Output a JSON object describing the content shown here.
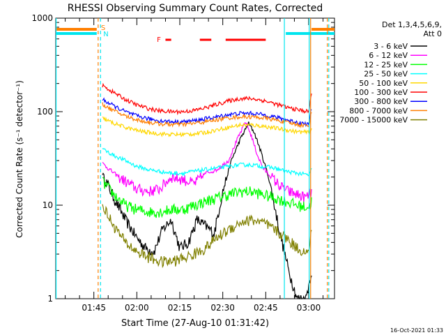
{
  "chart_data": {
    "type": "line",
    "title": "RHESSI Observing Summary Count Rates, Corrected",
    "xlabel": "Start Time (27-Aug-10 01:31:42)",
    "ylabel": "Corrected Count Rate (s⁻¹ detector⁻¹)",
    "y_scale": "log",
    "xlim": [
      "01:31:42",
      "03:09:00"
    ],
    "ylim": [
      1,
      1000
    ],
    "x_ticks": [
      "01:45",
      "02:00",
      "02:15",
      "02:30",
      "02:45",
      "03:00"
    ],
    "y_ticks": [
      "1",
      "10",
      "100",
      "1000"
    ],
    "timestamp": "16-Oct-2021 01:33",
    "legend": {
      "placement": "right",
      "header_line1": "Det 1,3,4,5,6,9,",
      "header_line2": "Att 0"
    },
    "markers": [
      {
        "label": "S",
        "color": "#ff7f00"
      },
      {
        "label": "N",
        "color": "#00e5ee"
      },
      {
        "label": "F",
        "color": "#ff0000"
      }
    ],
    "flare_flag_segments": [
      [
        "02:10",
        "02:12"
      ],
      [
        "02:22",
        "02:26"
      ],
      [
        "02:31",
        "02:45"
      ]
    ],
    "data_start": "01:48",
    "data_end": "03:01",
    "series": [
      {
        "name": "3 - 6 keV",
        "color": "#000000",
        "x": [
          "01:48",
          "01:52",
          "01:56",
          "02:00",
          "02:03",
          "02:06",
          "02:09",
          "02:12",
          "02:15",
          "02:18",
          "02:21",
          "02:24",
          "02:27",
          "02:30",
          "02:33",
          "02:36",
          "02:39",
          "02:41",
          "02:43",
          "02:46",
          "02:48",
          "02:50",
          "02:53",
          "02:56",
          "02:59",
          "03:01"
        ],
        "values": [
          22,
          12,
          7,
          4.5,
          3.5,
          3.2,
          5.5,
          7,
          3.5,
          4,
          7,
          6,
          5,
          14,
          30,
          50,
          75,
          60,
          40,
          20,
          10,
          5,
          2,
          1,
          1,
          2
        ]
      },
      {
        "name": "6 - 12 keV",
        "color": "#ff00ff",
        "x": [
          "01:48",
          "01:52",
          "01:56",
          "02:00",
          "02:04",
          "02:08",
          "02:12",
          "02:16",
          "02:20",
          "02:24",
          "02:28",
          "02:32",
          "02:35",
          "02:38",
          "02:40",
          "02:42",
          "02:44",
          "02:47",
          "02:50",
          "02:53",
          "02:56",
          "02:59",
          "03:01"
        ],
        "values": [
          28,
          22,
          18,
          15,
          14,
          15,
          20,
          19,
          17,
          22,
          24,
          30,
          50,
          78,
          55,
          35,
          25,
          20,
          16,
          14,
          13,
          12,
          14
        ]
      },
      {
        "name": "12 - 25 keV",
        "color": "#00ff00",
        "x": [
          "01:48",
          "01:52",
          "01:56",
          "02:00",
          "02:04",
          "02:08",
          "02:12",
          "02:16",
          "02:20",
          "02:24",
          "02:28",
          "02:32",
          "02:36",
          "02:40",
          "02:44",
          "02:48",
          "02:52",
          "02:56",
          "03:00",
          "03:01"
        ],
        "values": [
          18,
          13,
          10,
          9,
          8.5,
          8.5,
          9,
          9,
          10,
          11,
          12,
          13,
          14,
          14,
          13,
          12,
          11,
          10,
          9.5,
          11
        ]
      },
      {
        "name": "25 - 50 keV",
        "color": "#00ffff",
        "x": [
          "01:48",
          "01:52",
          "01:56",
          "02:00",
          "02:04",
          "02:08",
          "02:12",
          "02:16",
          "02:20",
          "02:24",
          "02:28",
          "02:32",
          "02:36",
          "02:40",
          "02:44",
          "02:48",
          "02:52",
          "02:56",
          "03:00",
          "03:01"
        ],
        "values": [
          40,
          34,
          30,
          26,
          24,
          23,
          22,
          22,
          23,
          24,
          25,
          26,
          27,
          27,
          26,
          25,
          23,
          22,
          21,
          24
        ]
      },
      {
        "name": "50 - 100 keV",
        "color": "#ffd700",
        "x": [
          "01:48",
          "01:52",
          "01:56",
          "02:00",
          "02:04",
          "02:08",
          "02:12",
          "02:16",
          "02:20",
          "02:24",
          "02:28",
          "02:32",
          "02:36",
          "02:40",
          "02:44",
          "02:48",
          "02:52",
          "02:56",
          "03:00",
          "03:01"
        ],
        "values": [
          85,
          75,
          68,
          63,
          60,
          58,
          57,
          57,
          58,
          60,
          64,
          68,
          72,
          72,
          70,
          67,
          64,
          61,
          60,
          65
        ]
      },
      {
        "name": "100 - 300 keV",
        "color": "#ff0000",
        "x": [
          "01:48",
          "01:52",
          "01:56",
          "02:00",
          "02:04",
          "02:08",
          "02:12",
          "02:16",
          "02:20",
          "02:24",
          "02:28",
          "02:32",
          "02:36",
          "02:40",
          "02:44",
          "02:48",
          "02:52",
          "02:56",
          "03:00",
          "03:01"
        ],
        "values": [
          190,
          160,
          135,
          118,
          108,
          102,
          100,
          100,
          103,
          110,
          120,
          130,
          138,
          138,
          132,
          122,
          112,
          105,
          100,
          160
        ]
      },
      {
        "name": "300 - 800 keV",
        "color": "#0000ff",
        "x": [
          "01:48",
          "01:52",
          "01:56",
          "02:00",
          "02:04",
          "02:08",
          "02:12",
          "02:16",
          "02:20",
          "02:24",
          "02:28",
          "02:32",
          "02:36",
          "02:40",
          "02:44",
          "02:48",
          "02:52",
          "02:56",
          "03:00",
          "03:01"
        ],
        "values": [
          135,
          115,
          100,
          90,
          84,
          80,
          78,
          78,
          80,
          84,
          88,
          93,
          96,
          96,
          93,
          88,
          82,
          77,
          73,
          110
        ]
      },
      {
        "name": "800 - 7000 keV",
        "color": "#ff7f00",
        "x": [
          "01:48",
          "01:52",
          "01:56",
          "02:00",
          "02:04",
          "02:08",
          "02:12",
          "02:16",
          "02:20",
          "02:24",
          "02:28",
          "02:32",
          "02:36",
          "02:40",
          "02:44",
          "02:48",
          "02:52",
          "02:56",
          "03:00",
          "03:01"
        ],
        "values": [
          120,
          102,
          90,
          82,
          77,
          74,
          73,
          73,
          75,
          78,
          82,
          86,
          88,
          88,
          86,
          82,
          77,
          73,
          70,
          100
        ]
      },
      {
        "name": "7000 - 15000 keV",
        "color": "#808000",
        "x": [
          "01:48",
          "01:52",
          "01:56",
          "02:00",
          "02:04",
          "02:08",
          "02:12",
          "02:16",
          "02:20",
          "02:24",
          "02:28",
          "02:32",
          "02:36",
          "02:40",
          "02:44",
          "02:48",
          "02:52",
          "02:56",
          "03:00",
          "03:01"
        ],
        "values": [
          10,
          6,
          4,
          3.2,
          2.8,
          2.5,
          2.5,
          2.7,
          3,
          3.5,
          4.5,
          5.5,
          6.5,
          7,
          6.5,
          5.5,
          4.5,
          3.5,
          3,
          6
        ]
      }
    ]
  }
}
